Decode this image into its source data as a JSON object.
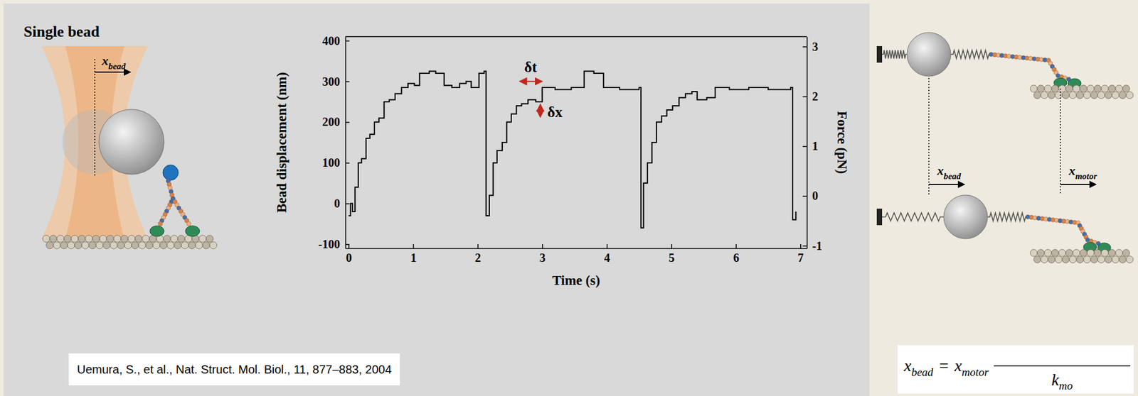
{
  "chart_data": {
    "type": "line",
    "line_style": "steps",
    "color": "#000000",
    "xlabel": "Time (s)",
    "ylabel": "Bead displacement (nm)",
    "y2label": "Force (pN)",
    "x": [
      0,
      0.03,
      0.06,
      0.1,
      0.15,
      0.2,
      0.27,
      0.33,
      0.4,
      0.47,
      0.55,
      0.63,
      0.72,
      0.82,
      0.92,
      1.02,
      1.1,
      1.25,
      1.35,
      1.48,
      1.6,
      1.72,
      1.82,
      1.9,
      2.02,
      2.1,
      2.13,
      2.18,
      2.24,
      2.3,
      2.38,
      2.45,
      2.52,
      2.6,
      2.68,
      2.78,
      2.9,
      3.0,
      3.2,
      3.45,
      3.65,
      3.8,
      3.95,
      4.2,
      4.5,
      4.53,
      4.57,
      4.63,
      4.7,
      4.77,
      4.85,
      4.93,
      5.02,
      5.12,
      5.22,
      5.32,
      5.4,
      5.55,
      5.68,
      5.9,
      6.2,
      6.5,
      6.85,
      6.88,
      6.93
    ],
    "values": [
      -30,
      0,
      -20,
      40,
      100,
      110,
      160,
      170,
      200,
      210,
      250,
      255,
      270,
      285,
      295,
      290,
      320,
      325,
      320,
      290,
      285,
      295,
      300,
      285,
      320,
      325,
      -30,
      20,
      100,
      130,
      150,
      200,
      220,
      240,
      245,
      255,
      250,
      285,
      280,
      285,
      325,
      320,
      285,
      280,
      285,
      -60,
      50,
      100,
      150,
      200,
      215,
      230,
      240,
      260,
      270,
      275,
      255,
      260,
      285,
      280,
      285,
      280,
      285,
      -40,
      -20
    ],
    "xlim": [
      -0.05,
      7.1
    ],
    "xticks": [
      0,
      1,
      2,
      3,
      4,
      5,
      6,
      7
    ],
    "ylim": [
      -110,
      410
    ],
    "yticks": [
      -100,
      0,
      100,
      200,
      300,
      400
    ],
    "y2lim": [
      -1.05,
      3.2
    ],
    "y2ticks": [
      -1,
      0,
      1,
      2,
      3
    ],
    "annotations": [
      {
        "text": "δt",
        "x": 2.82,
        "y": 335,
        "arrow_x": [
          2.65,
          3.0
        ],
        "arrow_y": 300,
        "color": "#c0281e"
      },
      {
        "text": "δx",
        "x": 3.08,
        "y": 225,
        "arrow_x": 2.97,
        "arrow_y": [
          212,
          244
        ],
        "color": "#c0281e"
      }
    ]
  },
  "diagram": {
    "single_bead": {
      "title": "Single bead",
      "x_label": {
        "main": "x",
        "sub": "bead"
      }
    },
    "spring_model": {
      "bead_label": {
        "main": "x",
        "sub": "bead"
      },
      "motor_label": {
        "main": "x",
        "sub": "motor"
      }
    }
  },
  "citation": "Uemura, S., et al., Nat. Struct. Mol. Biol., 11, 877–883, 2004",
  "equation": {
    "lhs": {
      "main": "x",
      "sub": "bead"
    },
    "equals": "=",
    "rhs": {
      "main": "x",
      "sub": "motor"
    },
    "denominator": {
      "main": "k",
      "sub": "mo"
    }
  }
}
